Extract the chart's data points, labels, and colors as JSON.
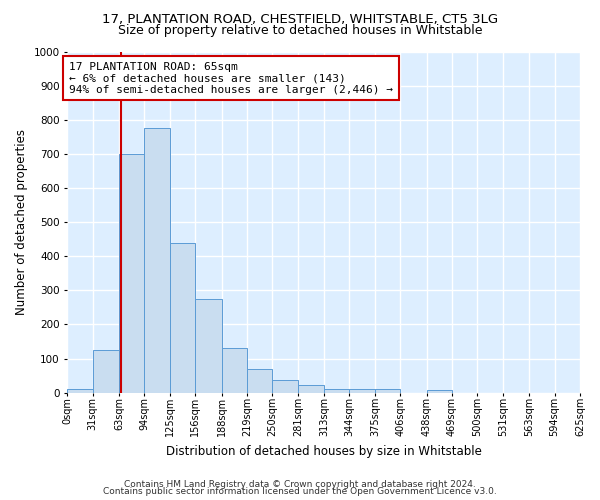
{
  "title1": "17, PLANTATION ROAD, CHESTFIELD, WHITSTABLE, CT5 3LG",
  "title2": "Size of property relative to detached houses in Whitstable",
  "xlabel": "Distribution of detached houses by size in Whitstable",
  "ylabel": "Number of detached properties",
  "bin_edges": [
    0,
    31,
    63,
    94,
    125,
    156,
    188,
    219,
    250,
    281,
    313,
    344,
    375,
    406,
    438,
    469,
    500,
    531,
    563,
    594,
    625
  ],
  "bar_heights": [
    10,
    125,
    700,
    775,
    440,
    275,
    130,
    70,
    38,
    22,
    10,
    12,
    10,
    0,
    8,
    0,
    0,
    0,
    0,
    0
  ],
  "bar_color": "#c9ddf0",
  "bar_edge_color": "#5b9bd5",
  "property_x": 65,
  "property_line_color": "#cc0000",
  "annotation_line1": "17 PLANTATION ROAD: 65sqm",
  "annotation_line2": "← 6% of detached houses are smaller (143)",
  "annotation_line3": "94% of semi-detached houses are larger (2,446) →",
  "annotation_box_color": "#ffffff",
  "annotation_box_edge_color": "#cc0000",
  "ylim": [
    0,
    1000
  ],
  "xlim": [
    0,
    625
  ],
  "plot_bg_color": "#ddeeff",
  "fig_bg_color": "#ffffff",
  "footer_text1": "Contains HM Land Registry data © Crown copyright and database right 2024.",
  "footer_text2": "Contains public sector information licensed under the Open Government Licence v3.0.",
  "tick_labels": [
    "0sqm",
    "31sqm",
    "63sqm",
    "94sqm",
    "125sqm",
    "156sqm",
    "188sqm",
    "219sqm",
    "250sqm",
    "281sqm",
    "313sqm",
    "344sqm",
    "375sqm",
    "406sqm",
    "438sqm",
    "469sqm",
    "500sqm",
    "531sqm",
    "563sqm",
    "594sqm",
    "625sqm"
  ],
  "grid_color": "#ffffff",
  "title1_fontsize": 9.5,
  "title2_fontsize": 9,
  "annotation_fontsize": 8,
  "axis_label_fontsize": 8.5,
  "tick_fontsize": 7,
  "footer_fontsize": 6.5,
  "yticks": [
    0,
    100,
    200,
    300,
    400,
    500,
    600,
    700,
    800,
    900,
    1000
  ]
}
